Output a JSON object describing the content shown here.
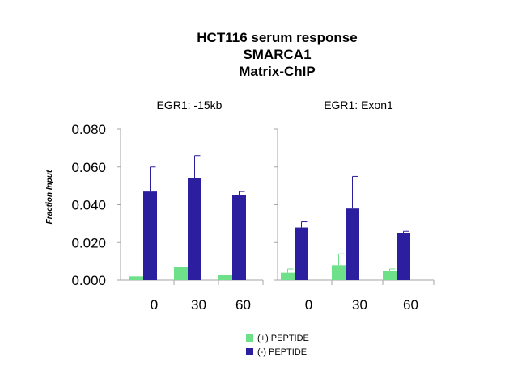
{
  "title_lines": [
    "HCT116 serum response",
    "SMARCA1",
    "Matrix-ChIP"
  ],
  "chart_data": [
    {
      "type": "bar",
      "title": "EGR1: -15kb",
      "ylabel": "Fraction Input",
      "xlabel": "",
      "ylim": [
        0,
        0.08
      ],
      "yticks": [
        "0.000",
        "0.020",
        "0.040",
        "0.060",
        "0.080"
      ],
      "categories": [
        "0",
        "30",
        "60"
      ],
      "series": [
        {
          "name": "(+) PEPTIDE",
          "color": "#6fe08a",
          "values": [
            0.002,
            0.007,
            0.003
          ],
          "errors": [
            0.0,
            0.0,
            0.0
          ]
        },
        {
          "name": "(-) PEPTIDE",
          "color": "#2b1fa0",
          "values": [
            0.047,
            0.054,
            0.045
          ],
          "errors": [
            0.013,
            0.012,
            0.002
          ]
        }
      ]
    },
    {
      "type": "bar",
      "title": "EGR1: Exon1",
      "ylim": [
        0,
        0.08
      ],
      "categories": [
        "0",
        "30",
        "60"
      ],
      "series": [
        {
          "name": "(+) PEPTIDE",
          "color": "#6fe08a",
          "values": [
            0.004,
            0.008,
            0.005
          ],
          "errors": [
            0.002,
            0.006,
            0.001
          ]
        },
        {
          "name": "(-) PEPTIDE",
          "color": "#2b1fa0",
          "values": [
            0.028,
            0.038,
            0.025
          ],
          "errors": [
            0.003,
            0.017,
            0.001
          ]
        }
      ]
    }
  ],
  "legend": [
    {
      "label": "(+) PEPTIDE",
      "color": "#6fe08a"
    },
    {
      "label": "(-) PEPTIDE",
      "color": "#2b1fa0"
    }
  ]
}
